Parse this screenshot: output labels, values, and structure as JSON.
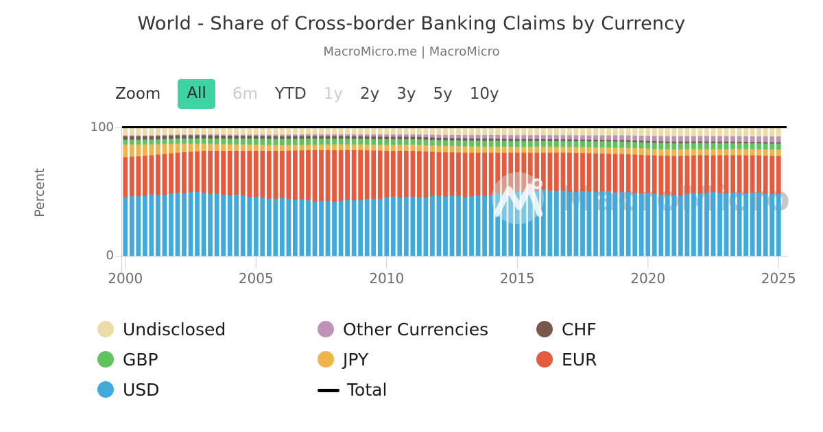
{
  "header": {
    "title": "World - Share of Cross-border Banking Claims by Currency",
    "subtitle": "MacroMicro.me | MacroMicro"
  },
  "toolbar": {
    "label": "Zoom",
    "buttons": [
      {
        "label": "All",
        "state": "active"
      },
      {
        "label": "6m",
        "state": "disabled"
      },
      {
        "label": "YTD",
        "state": "normal"
      },
      {
        "label": "1y",
        "state": "disabled"
      },
      {
        "label": "2y",
        "state": "normal"
      },
      {
        "label": "3y",
        "state": "normal"
      },
      {
        "label": "5y",
        "state": "normal"
      },
      {
        "label": "10y",
        "state": "normal"
      }
    ]
  },
  "watermark": {
    "logo_text": "MacroMicro"
  },
  "chart_data": {
    "type": "bar",
    "stacking": "percent",
    "title": "World - Share of Cross-border Banking Claims by Currency",
    "xlabel": "",
    "ylabel": "Percent",
    "ylim": [
      0,
      100
    ],
    "ytick_labels": [
      "0",
      "100"
    ],
    "x_ticks": [
      2000,
      2005,
      2010,
      2015,
      2020,
      2025
    ],
    "x_range": [
      2000,
      2025.25
    ],
    "bar_frequency": "quarterly",
    "anchor_step": "annual",
    "grid": false,
    "legend_position": "bottom",
    "anchor_years": [
      2000,
      2001,
      2002,
      2003,
      2004,
      2005,
      2006,
      2007,
      2008,
      2009,
      2010,
      2011,
      2012,
      2013,
      2014,
      2015,
      2016,
      2017,
      2018,
      2019,
      2020,
      2021,
      2022,
      2023,
      2024,
      2025
    ],
    "series": [
      {
        "name": "USD",
        "color": "#3FAADB",
        "values": [
          45.5,
          47.5,
          49,
          49.5,
          47.5,
          46,
          44.5,
          43.5,
          42.5,
          44,
          45.5,
          46,
          46.5,
          46.5,
          47.5,
          50,
          51,
          50.5,
          50,
          50,
          48.5,
          47.5,
          49,
          49.5,
          49,
          48.5
        ]
      },
      {
        "name": "EUR",
        "color": "#E65A3E",
        "values": [
          31.5,
          31,
          31.5,
          32.5,
          34.5,
          36,
          37.5,
          39,
          40,
          38.5,
          36.5,
          36,
          34.5,
          34,
          33,
          30.5,
          29.5,
          30,
          30,
          29.5,
          30,
          30.5,
          29.5,
          29,
          29.5,
          29.5
        ]
      },
      {
        "name": "JPY",
        "color": "#F1B44A",
        "values": [
          10,
          8.5,
          7,
          5.5,
          5,
          4.8,
          4.5,
          4.2,
          4.5,
          4.5,
          4.6,
          4.8,
          5,
          5,
          4.8,
          4.6,
          4.8,
          4.6,
          4.8,
          5,
          5.2,
          5.2,
          5,
          4.8,
          4.8,
          5
        ]
      },
      {
        "name": "GBP",
        "color": "#5FC45F",
        "values": [
          3.7,
          3.8,
          4,
          4.2,
          4.5,
          4.7,
          4.8,
          4.8,
          4.5,
          4.4,
          4.5,
          4.4,
          4.4,
          4.5,
          4.6,
          4.6,
          4.4,
          4.5,
          4.6,
          4.7,
          4.8,
          4.8,
          4.7,
          4.7,
          4.6,
          4.6
        ]
      },
      {
        "name": "CHF",
        "color": "#785A4D",
        "values": [
          2.7,
          2.6,
          2.5,
          2.3,
          2.2,
          2.1,
          2,
          2,
          2,
          1.9,
          1.9,
          1.8,
          1.8,
          1.7,
          1.6,
          1.5,
          1.4,
          1.3,
          1.2,
          1.2,
          1.2,
          1.1,
          1.1,
          1.1,
          1,
          1
        ]
      },
      {
        "name": "Other Currencies",
        "color": "#BD93B7",
        "values": [
          0.6,
          0.6,
          0.7,
          0.8,
          0.9,
          1,
          1.2,
          1.3,
          1.3,
          1.5,
          1.7,
          1.8,
          2.2,
          2.6,
          2.8,
          3,
          3.1,
          3.2,
          3.4,
          3.6,
          4,
          4.3,
          4.2,
          4.3,
          4.4,
          4.6
        ]
      },
      {
        "name": "Undisclosed",
        "color": "#EBDCA8",
        "values": [
          6,
          6,
          5.3,
          5.2,
          5.4,
          5.4,
          5.5,
          5.2,
          5.2,
          5.2,
          5.3,
          5.2,
          5.6,
          5.7,
          5.7,
          5.8,
          5.8,
          5.9,
          6,
          6,
          6.3,
          6.6,
          6.5,
          6.6,
          6.7,
          6.8
        ]
      }
    ],
    "total_line": {
      "name": "Total",
      "value": 100,
      "color": "#000000"
    }
  },
  "legend": {
    "items": [
      {
        "label": "Undisclosed"
      },
      {
        "label": "Other Currencies"
      },
      {
        "label": "CHF"
      },
      {
        "label": "GBP"
      },
      {
        "label": "JPY"
      },
      {
        "label": "EUR"
      },
      {
        "label": "USD"
      },
      {
        "label": "Total"
      }
    ]
  },
  "colors": {
    "accent_active_range": "#3FD2A3",
    "axis_text": "#666666",
    "disabled_text": "#CCCCCC",
    "title_text": "#333333",
    "subtitle_text": "#757575"
  }
}
